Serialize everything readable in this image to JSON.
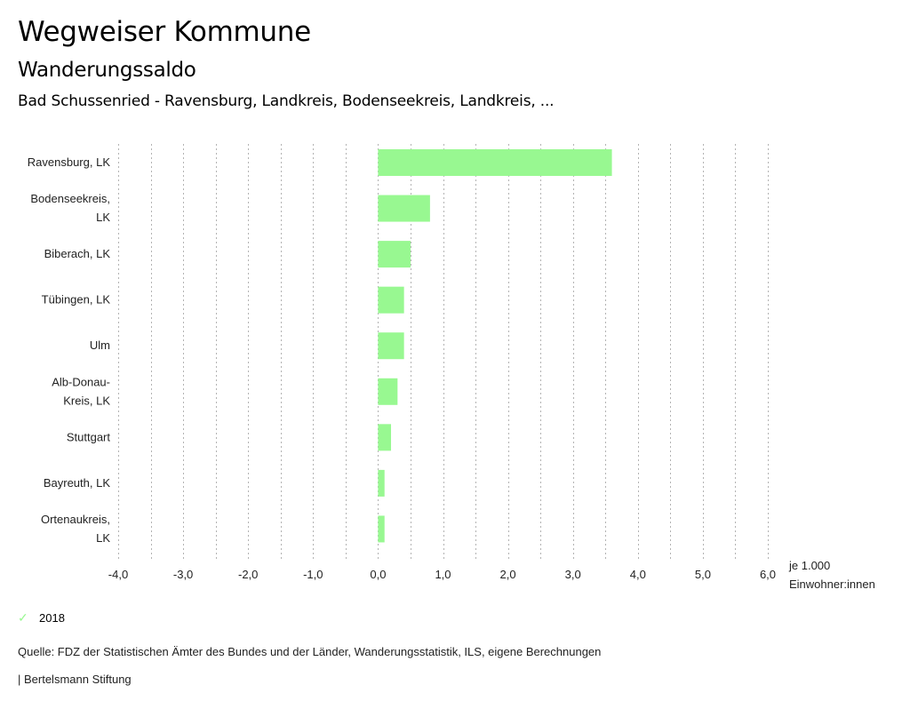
{
  "header": {
    "title": "Wegweiser Kommune",
    "subtitle": "Wanderungssaldo",
    "region": "Bad Schussenried - Ravensburg, Landkreis, Bodenseekreis, Landkreis, ..."
  },
  "chart_data": {
    "type": "bar",
    "orientation": "horizontal",
    "categories": [
      [
        "Ravensburg, LK"
      ],
      [
        "Bodenseekreis,",
        "LK"
      ],
      [
        "Biberach, LK"
      ],
      [
        "Tübingen, LK"
      ],
      [
        "Ulm"
      ],
      [
        "Alb-Donau-",
        "Kreis, LK"
      ],
      [
        "Stuttgart"
      ],
      [
        "Bayreuth, LK"
      ],
      [
        "Ortenaukreis,",
        "LK"
      ]
    ],
    "series": [
      {
        "name": "2018",
        "color": "#98f891",
        "values": [
          3.6,
          0.8,
          0.5,
          0.4,
          0.4,
          0.3,
          0.2,
          0.1,
          0.1
        ]
      }
    ],
    "xlim": [
      -4.0,
      6.0
    ],
    "x_ticks": [
      -4.0,
      -3.0,
      -2.0,
      -1.0,
      0.0,
      1.0,
      2.0,
      3.0,
      4.0,
      5.0,
      6.0
    ],
    "x_tick_labels": [
      "-4,0",
      "-3,0",
      "-2,0",
      "-1,0",
      "0,0",
      "1,0",
      "2,0",
      "3,0",
      "4,0",
      "5,0",
      "6,0"
    ],
    "grid_step": 0.5,
    "grid": true,
    "xlabel": [
      "je 1.000",
      "Einwohner:innen"
    ],
    "legend_position": "bottom-left",
    "gridline_color": "#b3b3b3"
  },
  "legend": {
    "items": [
      {
        "label": "2018",
        "icon": "check-icon",
        "color": "#98f891"
      }
    ]
  },
  "footer": {
    "source": "Quelle: FDZ der Statistischen Ämter des Bundes und der Länder, Wanderungsstatistik, ILS, eigene Berechnungen",
    "credit": "| Bertelsmann Stiftung"
  }
}
